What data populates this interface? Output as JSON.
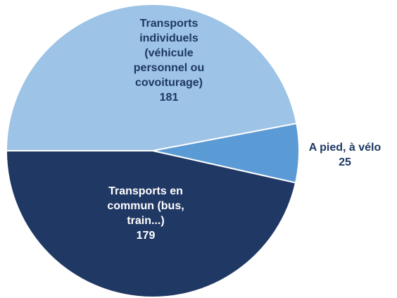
{
  "chart_data": {
    "type": "pie",
    "categories": [
      "Transports individuels (véhicule personnel ou covoiturage)",
      "A pied, à vélo",
      "Transports en commun (bus, train...)"
    ],
    "values": [
      181,
      25,
      179
    ],
    "colors": [
      "#9dc3e6",
      "#5b9bd5",
      "#203864"
    ]
  }
}
